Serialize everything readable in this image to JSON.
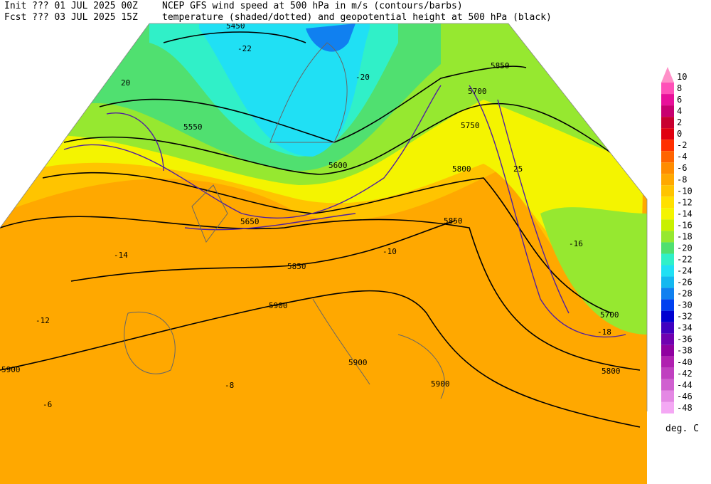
{
  "header": {
    "init": "Init  ??? 01 JUL 2025 00Z",
    "fcst": "Fcst ??? 03 JUL 2025 15Z",
    "title1": "NCEP GFS wind speed at 500 hPa in m/s (contours/barbs)",
    "title2": "temperature (shaded/dotted) and geopotential height at 500 hPa (black)"
  },
  "colorbar": {
    "unit": "deg. C",
    "levels": [
      {
        "label": "10",
        "color": "#ff90c8"
      },
      {
        "label": "8",
        "color": "#ff50b8"
      },
      {
        "label": "6",
        "color": "#e8109a"
      },
      {
        "label": "4",
        "color": "#c80070"
      },
      {
        "label": "2",
        "color": "#c80030"
      },
      {
        "label": "0",
        "color": "#e00010"
      },
      {
        "label": "-2",
        "color": "#ff3000"
      },
      {
        "label": "-4",
        "color": "#ff6400"
      },
      {
        "label": "-6",
        "color": "#ff8c00"
      },
      {
        "label": "-8",
        "color": "#ffa800"
      },
      {
        "label": "-10",
        "color": "#ffc400"
      },
      {
        "label": "-12",
        "color": "#ffe000"
      },
      {
        "label": "-14",
        "color": "#f4f400"
      },
      {
        "label": "-16",
        "color": "#c8f000"
      },
      {
        "label": "-18",
        "color": "#96e830"
      },
      {
        "label": "-20",
        "color": "#50e070"
      },
      {
        "label": "-22",
        "color": "#30f0c8"
      },
      {
        "label": "-24",
        "color": "#20e0f4"
      },
      {
        "label": "-26",
        "color": "#14b8f0"
      },
      {
        "label": "-28",
        "color": "#1080f0"
      },
      {
        "label": "-30",
        "color": "#0040f0"
      },
      {
        "label": "-32",
        "color": "#0000d0"
      },
      {
        "label": "-34",
        "color": "#4000c0"
      },
      {
        "label": "-36",
        "color": "#7000b0"
      },
      {
        "label": "-38",
        "color": "#9000a0"
      },
      {
        "label": "-40",
        "color": "#b020b0"
      },
      {
        "label": "-42",
        "color": "#c040c0"
      },
      {
        "label": "-44",
        "color": "#d060d0"
      },
      {
        "label": "-46",
        "color": "#e488e4"
      },
      {
        "label": "-48",
        "color": "#f4a8f4"
      }
    ]
  },
  "map": {
    "labels": [
      "5450",
      "-22",
      "5850",
      "5700",
      "5750",
      "5800",
      "5850",
      "5900",
      "5550",
      "5600",
      "5650",
      "20",
      "25",
      "-14",
      "-12",
      "-10",
      "-8",
      "-6",
      "-16",
      "-18",
      "5900",
      "5900",
      "5800",
      "5700",
      "5900",
      "5850",
      "-20"
    ]
  }
}
